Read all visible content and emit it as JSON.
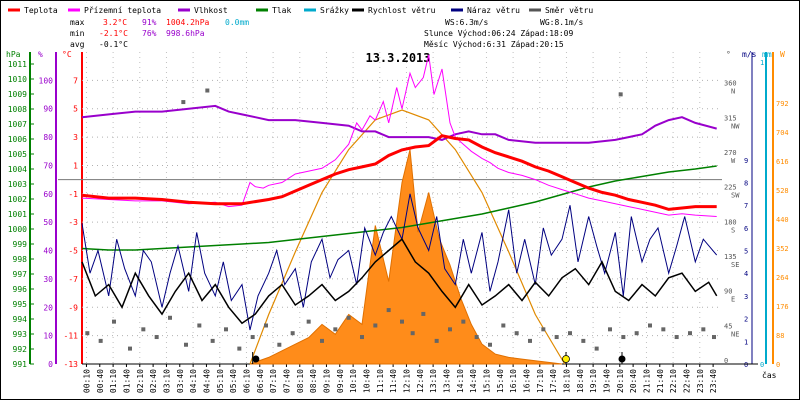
{
  "chart_data": {
    "type": "line",
    "title": "13.3.2013",
    "legend": [
      {
        "label": "Teplota",
        "color": "#ff0000"
      },
      {
        "label": "Přízemní teplota",
        "color": "#ff00ff"
      },
      {
        "label": "Vlhkost",
        "color": "#9900cc"
      },
      {
        "label": "Tlak",
        "color": "#008000"
      },
      {
        "label": "Srážky",
        "color": "#00aacc"
      },
      {
        "label": "Rychlost větru",
        "color": "#000000"
      },
      {
        "label": "Náraz větru",
        "color": "#000080"
      },
      {
        "label": "Směr větru",
        "color": "#555555"
      }
    ],
    "stats": {
      "max_label": "max",
      "max_temp": "3.2°C",
      "max_hum": "91%",
      "max_press": "1004.2hPa",
      "max_rain": "0.0mm",
      "min_label": "min",
      "min_temp": "-2.1°C",
      "min_hum": "76%",
      "min_press": "998.6hPa",
      "avg_label": "avg",
      "avg_temp": "-0.1°C",
      "ws": "WS:6.3m/s",
      "wg": "WG:8.1m/s",
      "sun": "Slunce Východ:06:24  Západ:18:09",
      "moon": "Měsíc  Východ:6:31   Západ:20:15"
    },
    "axes": {
      "x_label": "čas",
      "x_ticks": [
        "00:10",
        "00:40",
        "01:10",
        "01:40",
        "02:10",
        "02:40",
        "03:10",
        "03:40",
        "04:10",
        "04:40",
        "05:10",
        "05:40",
        "06:10",
        "06:40",
        "07:10",
        "07:40",
        "08:10",
        "08:40",
        "09:10",
        "09:40",
        "10:10",
        "10:40",
        "11:10",
        "11:40",
        "12:10",
        "12:40",
        "13:10",
        "13:40",
        "14:10",
        "14:40",
        "15:10",
        "15:40",
        "16:10",
        "16:40",
        "17:10",
        "17:40",
        "18:10",
        "18:40",
        "19:10",
        "19:40",
        "20:10",
        "20:40",
        "21:10",
        "21:40",
        "22:10",
        "22:40",
        "23:10",
        "23:40"
      ],
      "hpa_unit": "hPa",
      "hpa_ticks": [
        "1011",
        "1010",
        "1009",
        "1008",
        "1007",
        "1006",
        "1005",
        "1004",
        "1003",
        "1002",
        "1001",
        "1000",
        "999",
        "998",
        "997",
        "996",
        "995",
        "994",
        "993",
        "992",
        "991"
      ],
      "hum_unit": "%",
      "hum_ticks": [
        "100",
        "90",
        "80",
        "70",
        "60",
        "50",
        "40",
        "30",
        "20",
        "10",
        "0"
      ],
      "temp_unit": "°C",
      "temp_ticks": [
        "7",
        "5",
        "3",
        "1",
        "-1",
        "-3",
        "-5",
        "-7",
        "-9",
        "-11",
        "-13"
      ],
      "temp_ylim": [
        -13,
        9
      ],
      "dir_unit": "°",
      "dir_ticks": [
        {
          "deg": "360",
          "name": "N"
        },
        {
          "deg": "315",
          "name": "NW"
        },
        {
          "deg": "270",
          "name": "W"
        },
        {
          "deg": "225",
          "name": "SW"
        },
        {
          "deg": "180",
          "name": "S"
        },
        {
          "deg": "135",
          "name": "SE"
        },
        {
          "deg": "90",
          "name": "E"
        },
        {
          "deg": "45",
          "name": "NE"
        },
        {
          "deg": "0",
          "name": ""
        }
      ],
      "wind_unit": "m/s",
      "wind_ticks": [
        "9",
        "8",
        "7",
        "6",
        "5",
        "4",
        "3",
        "2",
        "1",
        "0"
      ],
      "rain_unit": "mm",
      "rain_ticks": [
        "1",
        "0"
      ],
      "solar_unit": "W",
      "solar_ticks": [
        "792",
        "704",
        "616",
        "528",
        "440",
        "352",
        "264",
        "176",
        "88",
        "0"
      ]
    },
    "series": {
      "temperature": {
        "t": [
          0,
          1,
          2,
          3,
          4,
          5,
          6,
          7,
          7.5,
          8,
          8.5,
          9,
          9.5,
          10,
          10.5,
          11,
          11.5,
          12,
          12.5,
          13,
          13.5,
          14,
          14.5,
          15,
          15.5,
          16,
          16.5,
          17,
          17.5,
          18,
          18.5,
          19,
          19.5,
          20,
          20.5,
          21,
          21.5,
          22,
          22.5,
          23,
          23.8
        ],
        "v": [
          -1.1,
          -1.3,
          -1.3,
          -1.4,
          -1.6,
          -1.7,
          -1.7,
          -1.4,
          -1.2,
          -0.8,
          -0.4,
          0.0,
          0.4,
          0.7,
          0.9,
          1.1,
          1.7,
          2.1,
          2.3,
          2.4,
          3.1,
          2.9,
          2.8,
          2.3,
          1.9,
          1.6,
          1.3,
          0.9,
          0.6,
          0.2,
          -0.2,
          -0.6,
          -0.9,
          -1.1,
          -1.4,
          -1.6,
          -1.8,
          -2.1,
          -2.0,
          -1.9,
          -1.9
        ]
      },
      "ground_temperature": {
        "t": [
          0,
          1,
          2,
          3,
          4,
          5,
          5.5,
          6,
          6.3,
          6.5,
          6.8,
          7,
          7.5,
          8,
          8.5,
          9,
          9.5,
          10,
          10.3,
          10.5,
          10.8,
          11,
          11.3,
          11.5,
          11.8,
          12,
          12.3,
          12.5,
          12.8,
          13,
          13.2,
          13.5,
          13.8,
          14,
          14.3,
          14.6,
          15,
          15.3,
          15.6,
          16,
          16.5,
          17,
          17.5,
          18,
          18.5,
          19,
          19.5,
          20,
          20.5,
          21,
          21.5,
          22,
          22.5,
          23,
          23.8
        ],
        "v": [
          -1.3,
          -1.4,
          -1.5,
          -1.5,
          -1.7,
          -1.6,
          -1.9,
          -1.8,
          -0.2,
          -0.5,
          -0.6,
          -0.4,
          -0.2,
          0.4,
          0.6,
          0.8,
          1.4,
          2.5,
          4.0,
          3.5,
          4.5,
          4.2,
          5.5,
          4.0,
          6.5,
          5.0,
          7.5,
          6.5,
          7.2,
          8.8,
          6.0,
          7.8,
          4.0,
          3.0,
          2.5,
          2.0,
          1.5,
          1.2,
          0.8,
          0.5,
          0.3,
          0.0,
          -0.4,
          -0.7,
          -1.0,
          -1.3,
          -1.5,
          -1.7,
          -1.9,
          -2.1,
          -2.3,
          -2.5,
          -2.4,
          -2.5,
          -2.6
        ]
      },
      "humidity": {
        "t": [
          0,
          1,
          2,
          3,
          4,
          5,
          5.5,
          6,
          6.5,
          7,
          8,
          9,
          10,
          10.5,
          11,
          11.5,
          12,
          12.5,
          13,
          13.5,
          14,
          14.5,
          15,
          15.5,
          16,
          17,
          18,
          19,
          20,
          20.5,
          21,
          21.5,
          22,
          22.5,
          23,
          23.8
        ],
        "v": [
          87,
          88,
          89,
          89,
          90,
          91,
          89,
          88,
          87,
          86,
          86,
          85,
          84,
          82,
          82,
          80,
          80,
          80,
          80,
          79,
          81,
          82,
          81,
          81,
          79,
          78,
          78,
          78,
          79,
          80,
          81,
          84,
          86,
          87,
          85,
          83
        ]
      },
      "pressure": {
        "t": [
          0,
          1,
          2,
          3,
          4,
          5,
          6,
          7,
          8,
          9,
          10,
          11,
          12,
          13,
          14,
          15,
          16,
          17,
          18,
          19,
          20,
          21,
          22,
          23,
          23.8
        ],
        "v": [
          998.7,
          998.6,
          998.6,
          998.7,
          998.8,
          998.9,
          999.0,
          999.1,
          999.3,
          999.5,
          999.7,
          999.9,
          1000.1,
          1000.4,
          1000.7,
          1001.0,
          1001.4,
          1001.8,
          1002.3,
          1002.8,
          1003.2,
          1003.5,
          1003.8,
          1004.0,
          1004.2
        ]
      },
      "wind_speed": {
        "t": [
          0,
          0.5,
          1,
          1.5,
          2,
          2.5,
          3,
          3.5,
          4,
          4.5,
          5,
          5.5,
          6,
          6.5,
          7,
          7.5,
          8,
          8.5,
          9,
          9.5,
          10,
          10.5,
          11,
          11.5,
          12,
          12.5,
          13,
          13.5,
          14,
          14.5,
          15,
          15.5,
          16,
          16.5,
          17,
          17.5,
          18,
          18.5,
          19,
          19.5,
          20,
          20.5,
          21,
          21.5,
          22,
          22.5,
          23,
          23.5,
          23.8
        ],
        "v": [
          4.5,
          3.0,
          3.5,
          2.5,
          4.0,
          3.0,
          2.2,
          3.2,
          4.0,
          2.8,
          3.5,
          2.5,
          1.8,
          2.2,
          3.0,
          3.5,
          2.6,
          3.0,
          3.5,
          2.8,
          3.2,
          3.8,
          4.5,
          5.0,
          5.5,
          4.5,
          4.0,
          3.2,
          2.5,
          3.5,
          2.6,
          3.0,
          3.5,
          2.8,
          3.6,
          3.0,
          3.8,
          4.2,
          3.5,
          4.5,
          3.2,
          2.8,
          3.5,
          3.0,
          3.8,
          4.0,
          3.2,
          3.6,
          3.0
        ]
      },
      "wind_gust": {
        "t": [
          0,
          0.3,
          0.6,
          1,
          1.3,
          1.6,
          2,
          2.3,
          2.6,
          3,
          3.3,
          3.6,
          4,
          4.3,
          4.6,
          5,
          5.3,
          5.6,
          6,
          6.3,
          6.6,
          7,
          7.3,
          7.6,
          8,
          8.3,
          8.6,
          9,
          9.3,
          9.6,
          10,
          10.3,
          10.6,
          11,
          11.3,
          11.6,
          12,
          12.3,
          12.6,
          13,
          13.3,
          13.6,
          14,
          14.3,
          14.6,
          15,
          15.3,
          15.6,
          16,
          16.3,
          16.6,
          17,
          17.3,
          17.6,
          18,
          18.3,
          18.6,
          19,
          19.3,
          19.6,
          20,
          20.3,
          20.6,
          21,
          21.3,
          21.6,
          22,
          22.3,
          22.6,
          23,
          23.3,
          23.8
        ],
        "v": [
          6.2,
          4.0,
          5.0,
          3.0,
          5.5,
          4.2,
          3.0,
          5.0,
          4.5,
          2.5,
          4.0,
          5.2,
          3.2,
          5.8,
          4.0,
          3.0,
          4.5,
          2.8,
          3.5,
          1.5,
          3.0,
          4.0,
          5.0,
          3.5,
          4.2,
          2.5,
          4.5,
          5.5,
          3.8,
          4.6,
          5.0,
          3.5,
          6.0,
          4.8,
          5.8,
          6.5,
          5.5,
          7.5,
          6.0,
          5.0,
          6.5,
          4.2,
          3.5,
          5.5,
          4.0,
          5.8,
          3.2,
          4.5,
          6.8,
          4.0,
          5.5,
          3.5,
          6.0,
          4.8,
          5.5,
          7.0,
          4.5,
          6.5,
          5.2,
          4.0,
          5.8,
          3.0,
          6.5,
          4.5,
          5.5,
          6.0,
          4.0,
          5.2,
          6.5,
          4.5,
          5.5,
          4.8
        ]
      },
      "wind_direction": {
        "t": [
          0.2,
          0.7,
          1.2,
          1.8,
          2.3,
          2.8,
          3.3,
          3.9,
          4.4,
          4.9,
          5.4,
          5.9,
          6.4,
          6.9,
          7.4,
          7.9,
          8.5,
          9.0,
          9.5,
          10.0,
          10.5,
          11.0,
          11.5,
          12.0,
          12.4,
          12.8,
          13.3,
          13.8,
          14.3,
          14.8,
          15.3,
          15.8,
          16.3,
          16.8,
          17.3,
          17.8,
          18.3,
          18.8,
          19.3,
          19.8,
          20.3,
          20.8,
          21.3,
          21.8,
          22.3,
          22.8,
          23.3,
          23.7,
          3.8,
          4.7,
          20.2
        ],
        "v": [
          40,
          30,
          55,
          20,
          45,
          35,
          60,
          25,
          50,
          30,
          45,
          20,
          35,
          50,
          25,
          40,
          55,
          30,
          45,
          60,
          35,
          50,
          70,
          55,
          40,
          65,
          30,
          45,
          55,
          35,
          25,
          50,
          40,
          30,
          45,
          35,
          40,
          30,
          20,
          45,
          35,
          40,
          50,
          45,
          35,
          40,
          45,
          35,
          340,
          355,
          350
        ]
      },
      "solar": {
        "t": [
          6.3,
          7,
          7.5,
          8,
          8.5,
          9,
          9.5,
          10,
          10.5,
          11,
          11.5,
          12,
          12.3,
          12.6,
          13,
          13.4,
          13.8,
          14.2,
          14.6,
          15,
          15.5,
          16,
          16.5,
          17,
          17.5,
          18
        ],
        "v": [
          0,
          20,
          40,
          60,
          80,
          120,
          90,
          150,
          120,
          420,
          250,
          550,
          650,
          400,
          520,
          380,
          300,
          200,
          120,
          60,
          30,
          20,
          15,
          10,
          5,
          0
        ]
      },
      "solar_max": {
        "t": [
          6.3,
          7,
          8,
          9,
          10,
          11,
          12,
          13,
          14,
          15,
          16,
          17,
          18.1
        ],
        "v": [
          0,
          150,
          340,
          520,
          650,
          740,
          770,
          740,
          650,
          520,
          340,
          150,
          0
        ]
      },
      "rain": {
        "t": [
          0,
          23.8
        ],
        "v": [
          0,
          0
        ]
      }
    },
    "events": {
      "sunrise": 6.4,
      "sunset": 18.15,
      "moonrise": 6.52,
      "moonset": 20.25
    }
  }
}
